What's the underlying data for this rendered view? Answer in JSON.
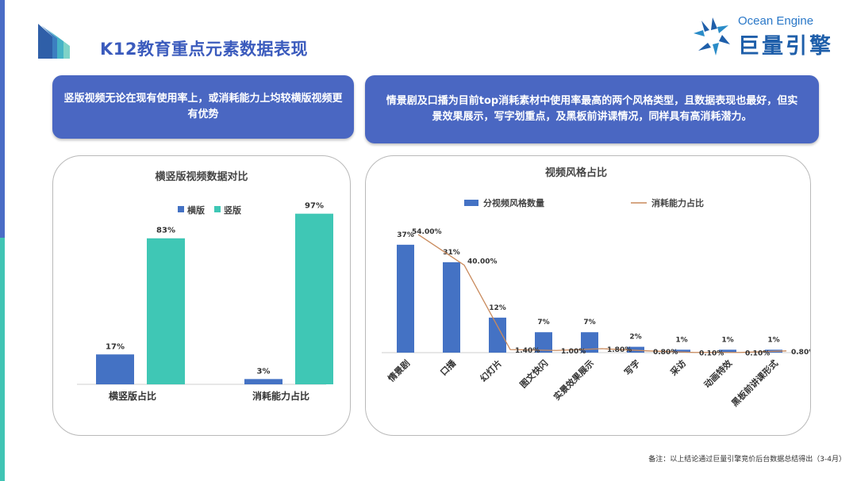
{
  "page": {
    "title": "K12教育重点元素数据表现",
    "brand_en": "Ocean Engine",
    "brand_cn": "巨量引擎",
    "callout_left": "竖版视频无论在现有使用率上，或消耗能力上均较横版视频更有优势",
    "callout_right": "情景剧及口播为目前top消耗素材中使用率最高的两个风格类型，且数据表现也最好，但实景效果展示，写字划重点，及黑板前讲课情况，同样具有高消耗潜力。",
    "footnote": "备注：以上结论通过巨量引擎竞价后台数据总结得出（3-4月）"
  },
  "colors": {
    "accent": "#3b5bbd",
    "bar_blue": "#4472c4",
    "bar_teal": "#3fc7b5",
    "line_orange": "#c98a5c"
  },
  "chart_data": [
    {
      "type": "bar",
      "title": "横竖版视频数据对比",
      "categories": [
        "横竖版占比",
        "消耗能力占比"
      ],
      "series": [
        {
          "name": "横版",
          "values": [
            17,
            3
          ],
          "labels": [
            "17%",
            "3%"
          ]
        },
        {
          "name": "竖版",
          "values": [
            83,
            97
          ],
          "labels": [
            "83%",
            "97%"
          ]
        }
      ],
      "ylim": [
        0,
        100
      ],
      "legend": "top-right",
      "grid": false
    },
    {
      "type": "bar",
      "title": "视频风格占比",
      "categories": [
        "情景剧",
        "口播",
        "幻灯片",
        "图文快闪",
        "实景效果展示",
        "写字",
        "采访",
        "动画特效",
        "黑板前讲课形式"
      ],
      "series": [
        {
          "name": "分视频风格数量",
          "type": "bar",
          "values": [
            37,
            31,
            12,
            7,
            7,
            2,
            1,
            1,
            1
          ],
          "labels": [
            "37%",
            "31%",
            "12%",
            "7%",
            "7%",
            "2%",
            "1%",
            "1%",
            "1%"
          ]
        },
        {
          "name": "消耗能力占比",
          "type": "line",
          "values": [
            54.0,
            40.0,
            1.4,
            1.0,
            1.8,
            0.8,
            0.1,
            0.1,
            0.8
          ],
          "labels": [
            "54.00%",
            "40.00%",
            "1.40%",
            "1.00%",
            "1.80%",
            "0.80%",
            "0.10%",
            "0.10%",
            "0.80%"
          ]
        }
      ],
      "ylim": [
        0,
        60
      ],
      "legend": "top",
      "grid": false
    }
  ]
}
